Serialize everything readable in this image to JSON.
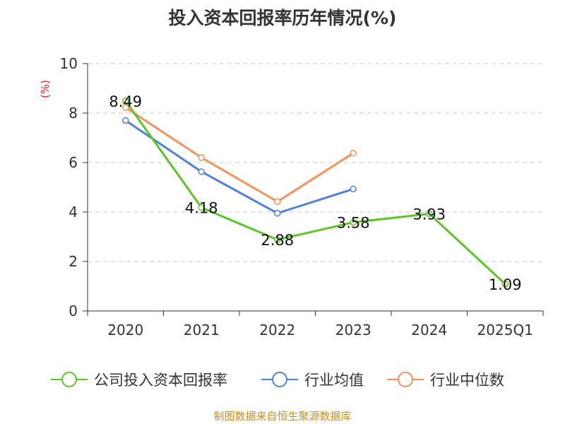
{
  "chart_data": {
    "type": "line",
    "title": "投入资本回报率历年情况(%)",
    "ylabel": "(%)",
    "xlabel": "",
    "categories": [
      "2020",
      "2021",
      "2022",
      "2023",
      "2024",
      "2025Q1"
    ],
    "ylim": [
      0,
      10
    ],
    "yticks": [
      0,
      2,
      4,
      6,
      8,
      10
    ],
    "grid": true,
    "legend_position": "bottom",
    "series": [
      {
        "name": "公司投入资本回报率",
        "color": "#5cc424",
        "values": [
          8.49,
          4.18,
          2.88,
          3.58,
          3.93,
          1.09
        ],
        "labels": [
          "8.49",
          "4.18",
          "2.88",
          "3.58",
          "3.93",
          "1.09"
        ]
      },
      {
        "name": "行业均值",
        "color": "#5080dc",
        "values": [
          7.7,
          5.63,
          3.95,
          4.93,
          null,
          null
        ]
      },
      {
        "name": "行业中位数",
        "color": "#f5925b",
        "values": [
          8.22,
          6.2,
          4.42,
          6.38,
          null,
          null
        ]
      }
    ]
  },
  "source": "制图数据来自恒生聚源数据库"
}
